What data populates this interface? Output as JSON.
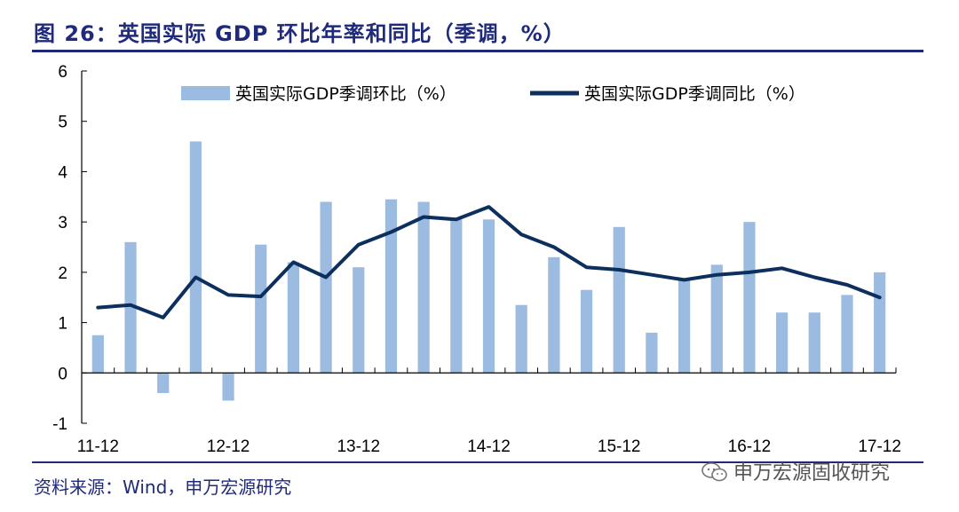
{
  "page": {
    "figure_title": "图 26：英国实际 GDP 环比年率和同比（季调，%）",
    "source_text": "资料来源：Wind，申万宏源研究",
    "watermark_text": "申万宏源固收研究",
    "watermark_icon": "wechat-icon"
  },
  "colors": {
    "bar": "#9bbbe0",
    "line": "#0d2f5e",
    "axis": "#000000",
    "title": "#1f2a7a"
  },
  "chart_data": {
    "type": "bar+line",
    "title": "英国实际 GDP 环比年率和同比（季调，%）",
    "xlabel": "",
    "ylabel": "",
    "ylim": [
      -1,
      6
    ],
    "yticks": [
      -1,
      0,
      1,
      2,
      3,
      4,
      5,
      6
    ],
    "grid": false,
    "legend_position": "top",
    "x_tick_labels": [
      "11-12",
      "12-12",
      "13-12",
      "14-12",
      "15-12",
      "16-12",
      "17-12"
    ],
    "x_tick_index": [
      0,
      4,
      8,
      12,
      16,
      20,
      24
    ],
    "categories": [
      "11-12",
      "12-03",
      "12-06",
      "12-09",
      "12-12",
      "13-03",
      "13-06",
      "13-09",
      "13-12",
      "14-03",
      "14-06",
      "14-09",
      "14-12",
      "15-03",
      "15-06",
      "15-09",
      "15-12",
      "16-03",
      "16-06",
      "16-09",
      "16-12",
      "17-03",
      "17-06",
      "17-09",
      "17-12"
    ],
    "series": [
      {
        "name": "英国实际GDP季调环比（%）",
        "type": "bar",
        "values": [
          0.75,
          2.6,
          -0.4,
          4.6,
          -0.55,
          2.55,
          2.2,
          3.4,
          2.1,
          3.45,
          3.4,
          3.05,
          3.05,
          1.35,
          2.3,
          1.65,
          2.9,
          0.8,
          1.85,
          2.15,
          3.0,
          1.2,
          1.2,
          1.55,
          2.0
        ]
      },
      {
        "name": "英国实际GDP季调同比（%）",
        "type": "line",
        "values": [
          1.3,
          1.35,
          1.1,
          1.9,
          1.55,
          1.52,
          2.2,
          1.9,
          2.55,
          2.8,
          3.1,
          3.05,
          3.3,
          2.75,
          2.5,
          2.1,
          2.05,
          1.95,
          1.85,
          1.95,
          2.0,
          2.08,
          1.9,
          1.75,
          1.5
        ]
      }
    ]
  }
}
